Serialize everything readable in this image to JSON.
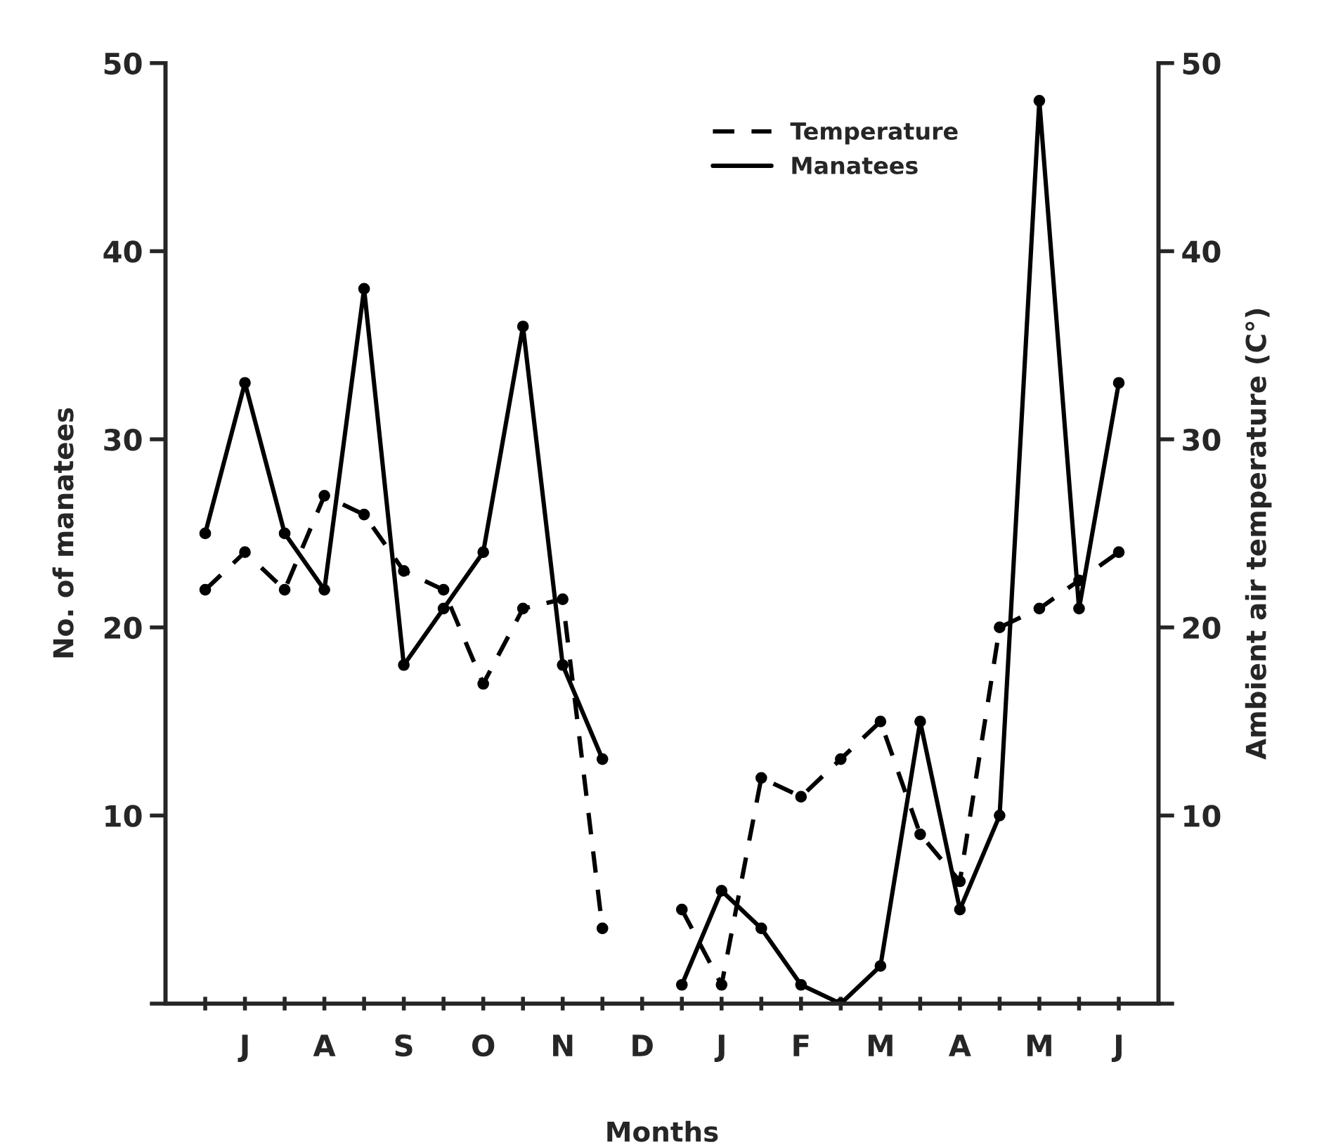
{
  "chart_data": {
    "type": "line",
    "xlabel": "Months",
    "ylabel": "No. of manatees",
    "y2label": "Ambient air temperature (C°)",
    "categories": [
      null,
      "J",
      null,
      "A",
      null,
      "S",
      null,
      "O",
      null,
      "N",
      null,
      "D",
      null,
      "J",
      null,
      "F",
      null,
      "M",
      null,
      "A",
      null,
      "M",
      null,
      "J"
    ],
    "ylim": [
      0,
      50
    ],
    "yticks": [
      {
        "value": 0,
        "label": null
      },
      10,
      20,
      30,
      40,
      50
    ],
    "y2lim": [
      0,
      50
    ],
    "y2ticks": [
      {
        "value": 0,
        "label": null
      },
      10,
      20,
      30,
      40,
      50
    ],
    "marker": "circle",
    "grid": false,
    "legend": "top right",
    "series": [
      {
        "name": "Temperature",
        "color": "#000000",
        "axis": "y2",
        "line_style": "dashed",
        "values": [
          22,
          24,
          22,
          27,
          26,
          23,
          22,
          17,
          21,
          21.5,
          4,
          null,
          5,
          1,
          12,
          11,
          13,
          15,
          9,
          6.5,
          20,
          21,
          22.5,
          24
        ]
      },
      {
        "name": "Manatees",
        "color": "#000000",
        "line_style": "solid",
        "values": [
          25,
          33,
          25,
          22,
          38,
          18,
          21,
          24,
          36,
          18,
          13,
          null,
          1,
          6,
          4,
          1,
          0,
          2,
          15,
          5,
          10,
          48,
          21,
          33
        ]
      }
    ]
  }
}
